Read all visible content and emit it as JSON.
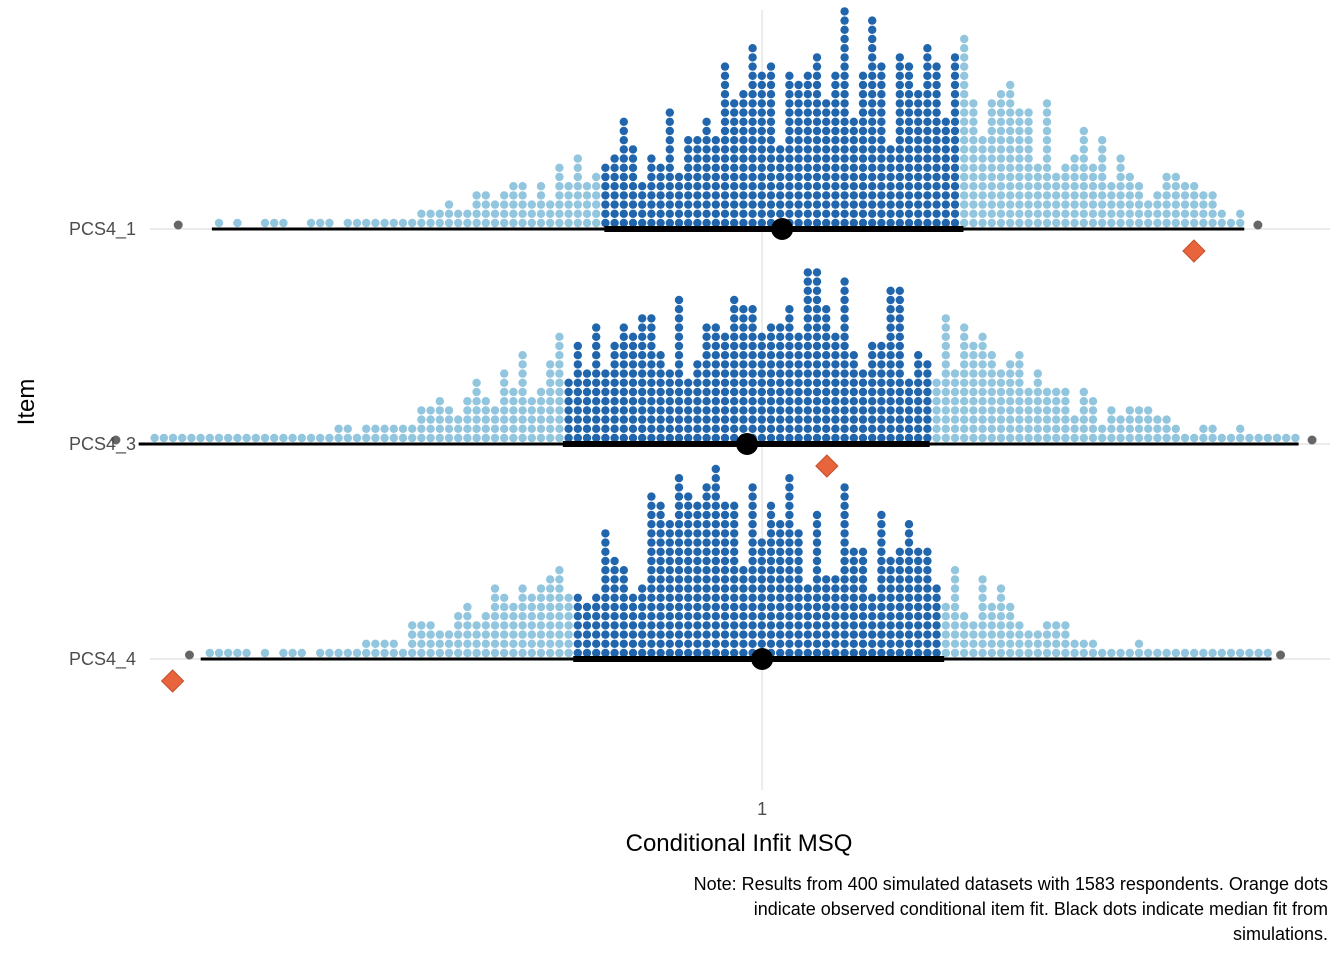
{
  "chart_data": {
    "type": "dotplot",
    "xlabel": "Conditional Infit MSQ",
    "ylabel": "Item",
    "x_scale": "log",
    "xlim": [
      0.885,
      1.12
    ],
    "x_ticks": [
      {
        "value": 1,
        "label": "1"
      }
    ],
    "grid": true,
    "legend": "none",
    "caption_lines": [
      "Note: Results from 400 simulated datasets with 1583 respondents. Orange dots",
      "indicate observed conditional item fit. Black dots indicate median fit from",
      "simulations."
    ],
    "colors": {
      "dot_inner": "#2166ac",
      "dot_outer": "#92c5de",
      "observed": "#e8643c",
      "median": "#000000",
      "extreme": "#666666",
      "grid": "#ebebeb"
    },
    "items": [
      {
        "label": "PCS4_1",
        "observed": 1.09,
        "median": 1.004,
        "interval_66": [
          0.969,
          1.041
        ],
        "interval_99": [
          0.896,
          1.101
        ],
        "extremes": [
          0.89,
          1.104
        ],
        "dist_center": 1.018,
        "dist_sd": 0.039,
        "dist_peak": 17
      },
      {
        "label": "PCS4_3",
        "observed": 1.013,
        "median": 0.997,
        "interval_66": [
          0.961,
          1.034
        ],
        "interval_99": [
          0.883,
          1.113
        ],
        "extremes": [
          0.879,
          1.116
        ],
        "dist_center": 1.002,
        "dist_sd": 0.042,
        "dist_peak": 14
      },
      {
        "label": "PCS4_4",
        "observed": 0.889,
        "median": 1.0,
        "interval_66": [
          0.963,
          1.037
        ],
        "interval_99": [
          0.894,
          1.107
        ],
        "extremes": [
          0.892,
          1.109
        ],
        "dist_center": 0.998,
        "dist_sd": 0.036,
        "dist_peak": 15
      }
    ]
  }
}
